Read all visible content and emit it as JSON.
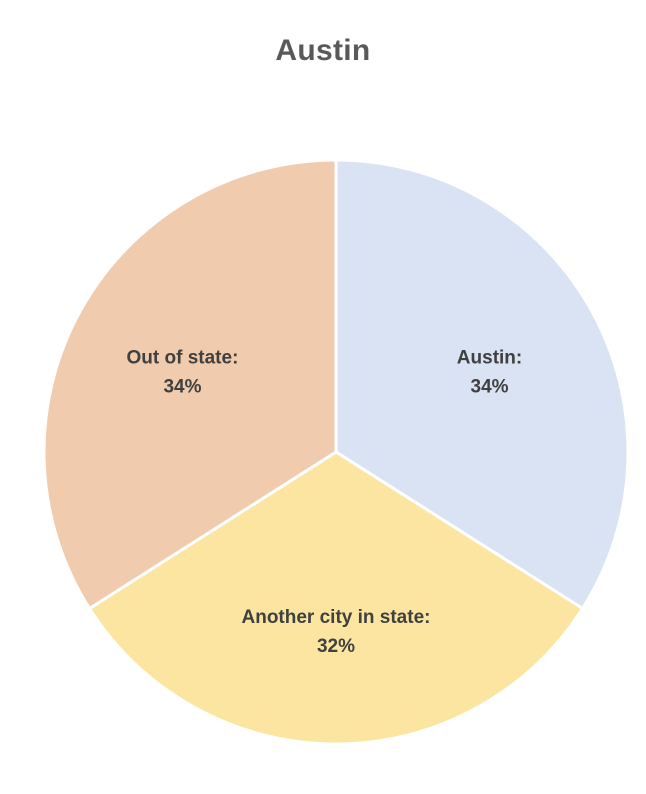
{
  "chart_data": {
    "type": "pie",
    "title": "Austin",
    "categories": [
      "Austin",
      "Another city in state",
      "Out of state"
    ],
    "values": [
      34,
      32,
      34
    ],
    "unit": "%",
    "labels": [
      {
        "name": "Austin:",
        "value": "34%"
      },
      {
        "name": "Another city in state:",
        "value": "32%"
      },
      {
        "name": "Out of state:",
        "value": "34%"
      }
    ],
    "colors": [
      "#DAE3F3",
      "#FBE5A1",
      "#F0CBAE"
    ],
    "start": "12 o'clock",
    "direction": "clockwise",
    "legend": "none"
  }
}
